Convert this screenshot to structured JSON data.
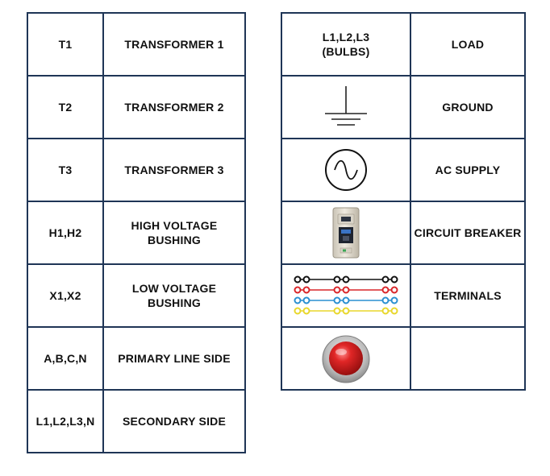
{
  "left_table": [
    {
      "code": "T1",
      "description": "TRANSFORMER 1"
    },
    {
      "code": "T2",
      "description": "TRANSFORMER 2"
    },
    {
      "code": "T3",
      "description": "TRANSFORMER 3"
    },
    {
      "code": "H1,H2",
      "description": "HIGH VOLTAGE BUSHING"
    },
    {
      "code": "X1,X2",
      "description": "LOW VOLTAGE BUSHING"
    },
    {
      "code": "A,B,C,N",
      "description": "PRIMARY LINE SIDE"
    },
    {
      "code": "L1,L2,L3,N",
      "description": "SECONDARY SIDE"
    }
  ],
  "right_table": [
    {
      "symbol_text": "L1,L2,L3\n(BULBS)",
      "description": "LOAD"
    },
    {
      "symbol_icon": "ground-icon",
      "description": "GROUND"
    },
    {
      "symbol_icon": "ac-supply-icon",
      "description": "AC SUPPLY"
    },
    {
      "symbol_icon": "circuit-breaker-icon",
      "description": "CIRCUIT BREAKER"
    },
    {
      "symbol_icon": "terminals-icon",
      "description": "TERMINALS"
    },
    {
      "symbol_icon": "red-button-icon",
      "description": ""
    }
  ],
  "colors": {
    "border": "#1f3556",
    "terminal_rows": [
      "#111111",
      "#d9262a",
      "#2a8fd1",
      "#e8d72c"
    ],
    "button_red": "#d21f1f"
  }
}
